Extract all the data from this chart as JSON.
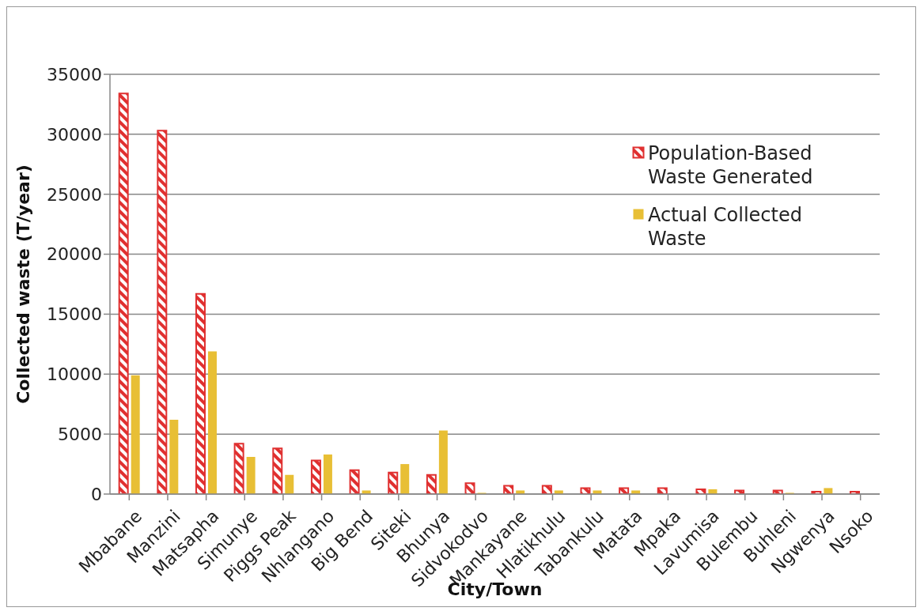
{
  "chart_data": {
    "type": "bar",
    "xlabel": "City/Town",
    "ylabel": "Collected waste (T/year)",
    "categories": [
      "Mbabane",
      "Manzini",
      "Matsapha",
      "Simunye",
      "Piggs Peak",
      "Nhlangano",
      "Big Bend",
      "Siteki",
      "Bhunya",
      "Sidvokodvo",
      "Mankayane",
      "Hlatikhulu",
      "Tabankulu",
      "Matata",
      "Mpaka",
      "Lavumisa",
      "Bulembu",
      "Buhleni",
      "Ngwenya",
      "Nsoko"
    ],
    "series": [
      {
        "name": "Population-Based Waste Generated",
        "color": "#e03030",
        "values": [
          33400,
          30300,
          16700,
          4200,
          3800,
          2800,
          2000,
          1800,
          1600,
          900,
          700,
          700,
          500,
          500,
          500,
          400,
          300,
          300,
          200,
          200
        ]
      },
      {
        "name": "Actual Collected Waste",
        "color": "#e8bf35",
        "values": [
          9900,
          6200,
          11900,
          3100,
          1600,
          3300,
          300,
          2500,
          5300,
          100,
          300,
          300,
          300,
          300,
          0,
          400,
          0,
          100,
          500,
          0
        ]
      }
    ],
    "ylim": [
      0,
      35000
    ],
    "yticks": [
      0,
      5000,
      10000,
      15000,
      20000,
      25000,
      30000,
      35000
    ],
    "grid": "y",
    "legend": "top right"
  }
}
